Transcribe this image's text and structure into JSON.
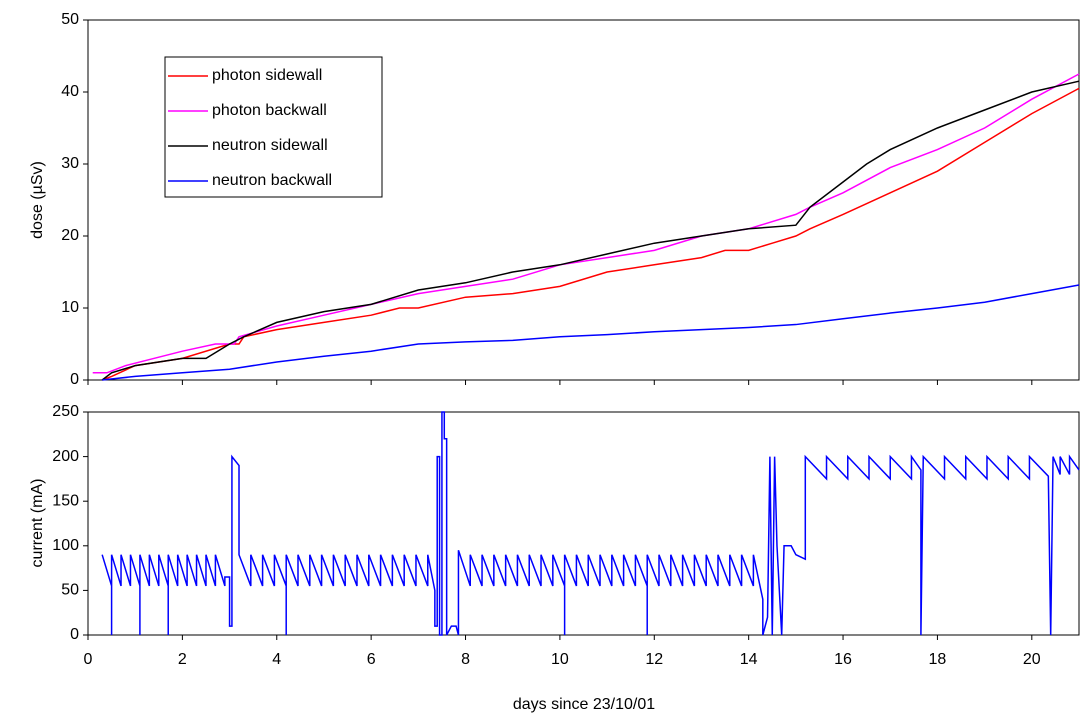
{
  "chart_data": [
    {
      "type": "line",
      "ylabel": "dose (µSv)",
      "xlim": [
        0,
        21
      ],
      "ylim": [
        0,
        50
      ],
      "yticks": [
        0,
        10,
        20,
        30,
        40,
        50
      ],
      "legend_position": "upper left",
      "series": [
        {
          "name": "photon sidewall",
          "color": "#ff0000",
          "x": [
            0.3,
            0.5,
            1,
            2,
            3,
            3.2,
            3.3,
            4,
            5,
            6,
            6.6,
            7,
            8,
            9,
            10,
            11,
            12,
            13,
            13.5,
            14,
            14.5,
            15,
            15.3,
            16,
            17,
            18,
            19,
            20,
            21
          ],
          "values": [
            0,
            0.5,
            2,
            3,
            5,
            5,
            6,
            7,
            8,
            9,
            10,
            10,
            11.5,
            12,
            13,
            15,
            16,
            17,
            18,
            18,
            19,
            20,
            21,
            23,
            26,
            29,
            33,
            37,
            40.5
          ]
        },
        {
          "name": "photon backwall",
          "color": "#ff00ff",
          "x": [
            0.1,
            0.4,
            0.8,
            2,
            2.7,
            3.1,
            3.2,
            4,
            5,
            6,
            7,
            8,
            9,
            10,
            11,
            12,
            13,
            14,
            15,
            15.3,
            16,
            17,
            18,
            19,
            20,
            21
          ],
          "values": [
            1,
            1,
            2,
            4,
            5,
            5,
            6,
            7.5,
            9,
            10.5,
            12,
            13,
            14,
            16,
            17,
            18,
            20,
            21,
            23,
            24,
            26,
            29.5,
            32,
            35,
            39,
            42.5
          ]
        },
        {
          "name": "neutron sidewall",
          "color": "#000000",
          "x": [
            0.3,
            0.5,
            1,
            2,
            2.5,
            3,
            3.3,
            4,
            5,
            6,
            7,
            8,
            9,
            10,
            11,
            12,
            13,
            14,
            15,
            15.3,
            16,
            16.5,
            17,
            18,
            19,
            20,
            21
          ],
          "values": [
            0,
            1,
            2,
            3,
            3,
            5,
            6,
            8,
            9.5,
            10.5,
            12.5,
            13.5,
            15,
            16,
            17.5,
            19,
            20,
            21,
            21.5,
            24,
            27.5,
            30,
            32,
            35,
            37.5,
            40,
            41.5
          ]
        },
        {
          "name": "neutron backwall",
          "color": "#0000ff",
          "x": [
            0.3,
            1,
            2,
            3,
            4,
            5,
            6,
            7,
            8,
            9,
            10,
            11,
            12,
            13,
            14,
            15,
            16,
            17,
            18,
            19,
            20,
            21
          ],
          "values": [
            0,
            0.5,
            1,
            1.5,
            2.5,
            3.3,
            4,
            5,
            5.3,
            5.5,
            6,
            6.3,
            6.7,
            7,
            7.3,
            7.7,
            8.5,
            9.3,
            10,
            10.8,
            12,
            13.2
          ]
        }
      ]
    },
    {
      "type": "line",
      "ylabel": "current (mA)",
      "xlabel": "days since 23/10/01",
      "xlim": [
        0,
        21
      ],
      "ylim": [
        0,
        250
      ],
      "xticks": [
        0,
        2,
        4,
        6,
        8,
        10,
        12,
        14,
        16,
        18,
        20
      ],
      "yticks": [
        0,
        50,
        100,
        150,
        200,
        250
      ],
      "series": [
        {
          "color": "#0000ff",
          "x": [
            0.3,
            0.5,
            0.5,
            0.5,
            0.7,
            0.7,
            0.9,
            0.9,
            1.1,
            1.1,
            1.1,
            1.3,
            1.3,
            1.5,
            1.5,
            1.7,
            1.7,
            1.7,
            1.9,
            1.9,
            2.1,
            2.1,
            2.3,
            2.3,
            2.5,
            2.5,
            2.7,
            2.7,
            2.9,
            2.9,
            3.0,
            3.0,
            3.05,
            3.05,
            3.2,
            3.2,
            3.45,
            3.45,
            3.7,
            3.7,
            3.95,
            3.95,
            4.2,
            4.2,
            4.2,
            4.45,
            4.45,
            4.7,
            4.7,
            4.95,
            4.95,
            5.2,
            5.2,
            5.45,
            5.45,
            5.7,
            5.7,
            5.95,
            5.95,
            6.2,
            6.2,
            6.45,
            6.45,
            6.7,
            6.7,
            6.95,
            6.95,
            7.2,
            7.2,
            7.35,
            7.35,
            7.4,
            7.4,
            7.45,
            7.45,
            7.5,
            7.5,
            7.55,
            7.55,
            7.6,
            7.6,
            7.7,
            7.8,
            7.85,
            7.85,
            8.1,
            8.1,
            8.35,
            8.35,
            8.6,
            8.6,
            8.85,
            8.85,
            9.1,
            9.1,
            9.35,
            9.35,
            9.6,
            9.6,
            9.85,
            9.85,
            10.1,
            10.1,
            10.1,
            10.35,
            10.35,
            10.6,
            10.6,
            10.85,
            10.85,
            11.1,
            11.1,
            11.35,
            11.35,
            11.6,
            11.6,
            11.85,
            11.85,
            11.85,
            12.1,
            12.1,
            12.35,
            12.35,
            12.6,
            12.6,
            12.85,
            12.85,
            13.1,
            13.1,
            13.35,
            13.35,
            13.6,
            13.6,
            13.85,
            13.85,
            14.1,
            14.1,
            14.3,
            14.3,
            14.4,
            14.45,
            14.5,
            14.55,
            14.6,
            14.7,
            14.75,
            14.9,
            15.0,
            15.2,
            15.2,
            15.65,
            15.65,
            16.1,
            16.1,
            16.55,
            16.55,
            17.0,
            17.0,
            17.45,
            17.45,
            17.65,
            17.65,
            17.7,
            18.15,
            18.15,
            18.6,
            18.6,
            19.05,
            19.05,
            19.5,
            19.5,
            19.95,
            19.95,
            20.35,
            20.4,
            20.45,
            20.6,
            20.6,
            20.8,
            20.8,
            21
          ],
          "values": [
            90,
            55,
            0,
            90,
            55,
            90,
            55,
            90,
            55,
            0,
            90,
            55,
            90,
            55,
            90,
            55,
            0,
            90,
            55,
            90,
            55,
            90,
            55,
            90,
            55,
            90,
            55,
            90,
            55,
            65,
            65,
            10,
            10,
            200,
            190,
            90,
            55,
            90,
            55,
            90,
            55,
            90,
            55,
            0,
            90,
            55,
            90,
            55,
            90,
            55,
            90,
            55,
            90,
            55,
            90,
            55,
            90,
            55,
            90,
            55,
            90,
            55,
            90,
            55,
            90,
            55,
            90,
            55,
            90,
            50,
            10,
            10,
            200,
            200,
            0,
            0,
            250,
            250,
            220,
            220,
            0,
            10,
            10,
            0,
            95,
            55,
            90,
            55,
            90,
            55,
            90,
            55,
            90,
            55,
            90,
            55,
            90,
            55,
            90,
            55,
            90,
            55,
            0,
            90,
            55,
            90,
            55,
            90,
            55,
            90,
            55,
            90,
            55,
            90,
            55,
            90,
            55,
            0,
            90,
            55,
            90,
            55,
            90,
            55,
            90,
            55,
            90,
            55,
            90,
            55,
            90,
            55,
            90,
            55,
            90,
            55,
            90,
            40,
            0,
            20,
            200,
            0,
            200,
            100,
            0,
            100,
            100,
            90,
            85,
            200,
            175,
            200,
            175,
            200,
            175,
            200,
            175,
            200,
            175,
            200,
            185,
            0,
            200,
            175,
            200,
            175,
            200,
            175,
            200,
            175,
            200,
            175,
            200,
            178,
            0,
            200,
            180,
            200,
            180,
            200,
            185
          ]
        }
      ]
    }
  ]
}
